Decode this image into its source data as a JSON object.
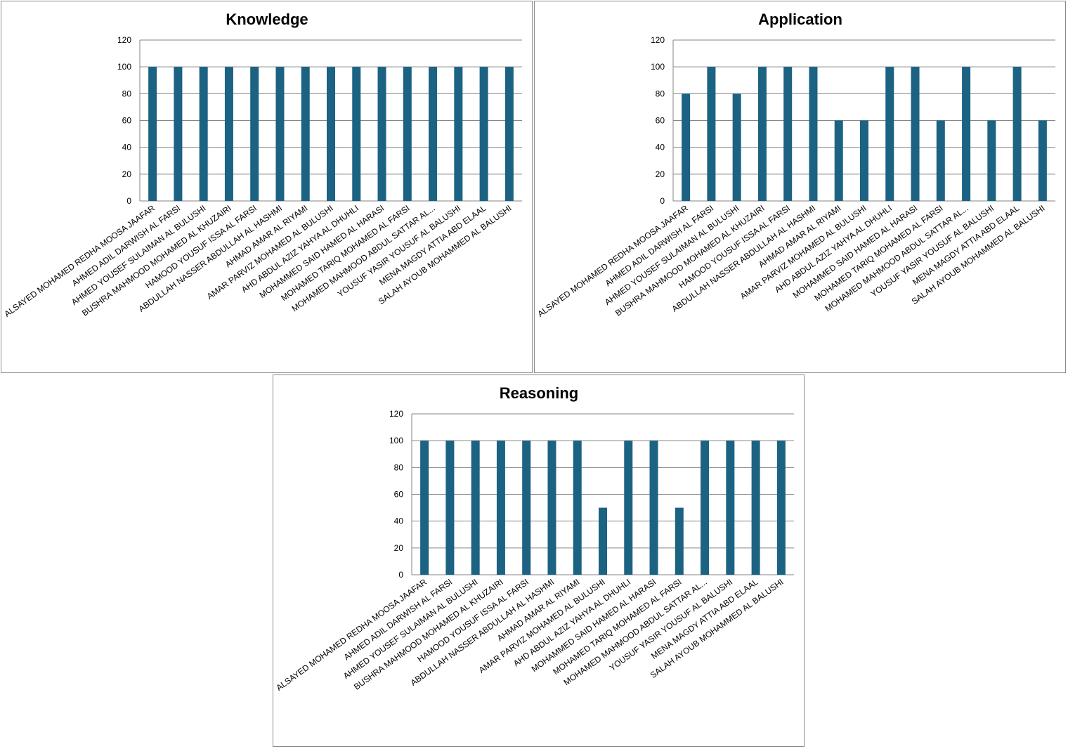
{
  "categories": [
    "ALSAYED MOHAMED REDHA MOOSA JAAFAR",
    "AHMED ADIL DARWISH  AL FARSI",
    "AHMED YOUSEF SULAIMAN AL BULUSHI",
    "BUSHRA MAHMOOD MOHAMED AL KHUZAIRI",
    "HAMOOD YOUSUF ISSA AL FARSI",
    "ABDULLAH NASSER ABDULLAH AL HASHMI",
    "AHMAD AMAR  AL RIYAMI",
    "AMAR PARVIZ MOHAMED AL BULUSHI",
    "AHD ABDUL AZIZ  YAHYA  AL DHUHLI",
    "MOHAMMED SAID HAMED AL HARASI",
    "MOHAMED TARIQ  MOHAMED AL FARSI",
    "MOHAMED MAHMOOD ABDUL SATTAR  AL...",
    "YOUSUF YASIR YOUSUF AL BALUSHI",
    "MENA MAGDY ATTIA  ABD  ELAAL",
    "SALAH AYOUB MOHAMMED AL BALUSHI"
  ],
  "chart_data": [
    {
      "type": "bar",
      "title": "Knowledge",
      "values": [
        100,
        100,
        100,
        100,
        100,
        100,
        100,
        100,
        100,
        100,
        100,
        100,
        100,
        100,
        100
      ],
      "ylim": [
        0,
        120
      ],
      "yticks": [
        0,
        20,
        40,
        60,
        80,
        100,
        120
      ],
      "grid": true,
      "legend": "none",
      "color": "#1b6283"
    },
    {
      "type": "bar",
      "title": "Application",
      "values": [
        80,
        100,
        80,
        100,
        100,
        100,
        60,
        60,
        100,
        100,
        60,
        100,
        60,
        100,
        60
      ],
      "ylim": [
        0,
        120
      ],
      "yticks": [
        0,
        20,
        40,
        60,
        80,
        100,
        120
      ],
      "grid": true,
      "legend": "none",
      "color": "#1b6283"
    },
    {
      "type": "bar",
      "title": "Reasoning",
      "values": [
        100,
        100,
        100,
        100,
        100,
        100,
        100,
        50,
        100,
        100,
        50,
        100,
        100,
        100,
        100
      ],
      "ylim": [
        0,
        120
      ],
      "yticks": [
        0,
        20,
        40,
        60,
        80,
        100,
        120
      ],
      "grid": true,
      "legend": "none",
      "color": "#1b6283"
    }
  ],
  "colors": {
    "bar": "#1b6283",
    "gridline": "#868686",
    "border": "#8c8c8c"
  }
}
